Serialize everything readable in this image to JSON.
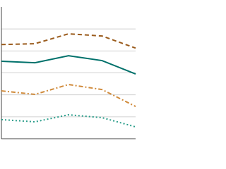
{
  "chart_data": {
    "type": "line",
    "categories": [
      null,
      null,
      null,
      null,
      null
    ],
    "series": [
      {
        "color": "#9a5b1c",
        "dash": "6,4",
        "values": [
          4.29,
          4.33,
          4.78,
          4.68,
          4.13
        ]
      },
      {
        "color": "#00716b",
        "dash": "",
        "values": [
          3.53,
          3.46,
          3.78,
          3.56,
          2.95
        ]
      },
      {
        "color": "#d08a3a",
        "dash": "6,3,2,3",
        "values": [
          2.18,
          2.02,
          2.47,
          2.24,
          1.47
        ]
      },
      {
        "color": "#2a9d8a",
        "dash": "2,3",
        "values": [
          0.87,
          0.77,
          1.09,
          0.96,
          0.54
        ]
      }
    ],
    "ylim": [
      0,
      6
    ],
    "yticks": [
      1,
      2,
      3,
      4,
      5
    ],
    "grid": true
  }
}
